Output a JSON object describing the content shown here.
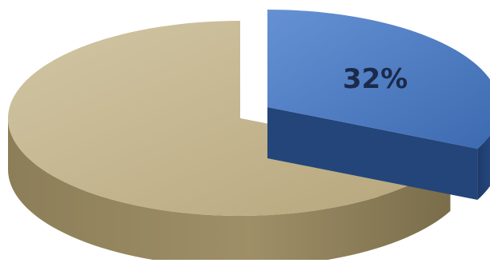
{
  "chart_data": {
    "type": "pie",
    "title": "",
    "style": "3d-exploded",
    "slices": [
      {
        "value": 32,
        "label": "32%",
        "color": "#4a7cc4",
        "exploded": true
      },
      {
        "value": 68,
        "label": "",
        "color": "#c3b48d",
        "exploded": false
      }
    ],
    "label_color": "#1a2a4a"
  }
}
